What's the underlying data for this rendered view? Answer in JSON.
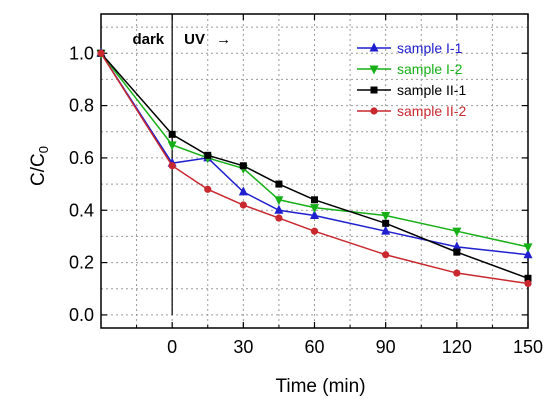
{
  "chart_data": {
    "type": "line",
    "xlabel": "Time (min)",
    "ylabel_main": "C/C",
    "ylabel_sub": "0",
    "xlim": [
      -30,
      150
    ],
    "ylim": [
      -0.05,
      1.15
    ],
    "xticks": [
      0,
      30,
      60,
      90,
      120,
      150
    ],
    "xtick_labels": [
      "0",
      "30",
      "60",
      "90",
      "120",
      "150"
    ],
    "yticks": [
      0.0,
      0.2,
      0.4,
      0.6,
      0.8,
      1.0
    ],
    "ytick_labels": [
      "0.0",
      "0.2",
      "0.4",
      "0.6",
      "0.8",
      "1.0"
    ],
    "grid": true,
    "legend_position": "top-right",
    "annotations": {
      "dark": "dark",
      "uv": "UV",
      "arrow": "→",
      "divider_x": 0
    },
    "series": [
      {
        "name": "sample I-1",
        "color": "#1f1fd0",
        "marker": "triangle-up",
        "x": [
          -30,
          0,
          15,
          30,
          45,
          60,
          90,
          120,
          150
        ],
        "y": [
          1.0,
          0.58,
          0.6,
          0.47,
          0.4,
          0.38,
          0.32,
          0.26,
          0.23
        ]
      },
      {
        "name": "sample I-2",
        "color": "#16b016",
        "marker": "triangle-down",
        "x": [
          -30,
          0,
          15,
          30,
          45,
          60,
          90,
          120,
          150
        ],
        "y": [
          1.0,
          0.65,
          0.6,
          0.56,
          0.44,
          0.41,
          0.38,
          0.32,
          0.26
        ]
      },
      {
        "name": "sample II-1",
        "color": "#000000",
        "marker": "square",
        "x": [
          -30,
          0,
          15,
          30,
          45,
          60,
          90,
          120,
          150
        ],
        "y": [
          1.0,
          0.69,
          0.61,
          0.57,
          0.5,
          0.44,
          0.35,
          0.24,
          0.14
        ]
      },
      {
        "name": "sample II-2",
        "color": "#c8282e",
        "marker": "circle",
        "x": [
          -30,
          0,
          15,
          30,
          45,
          60,
          90,
          120,
          150
        ],
        "y": [
          1.0,
          0.57,
          0.48,
          0.42,
          0.37,
          0.32,
          0.23,
          0.16,
          0.12
        ]
      }
    ]
  }
}
